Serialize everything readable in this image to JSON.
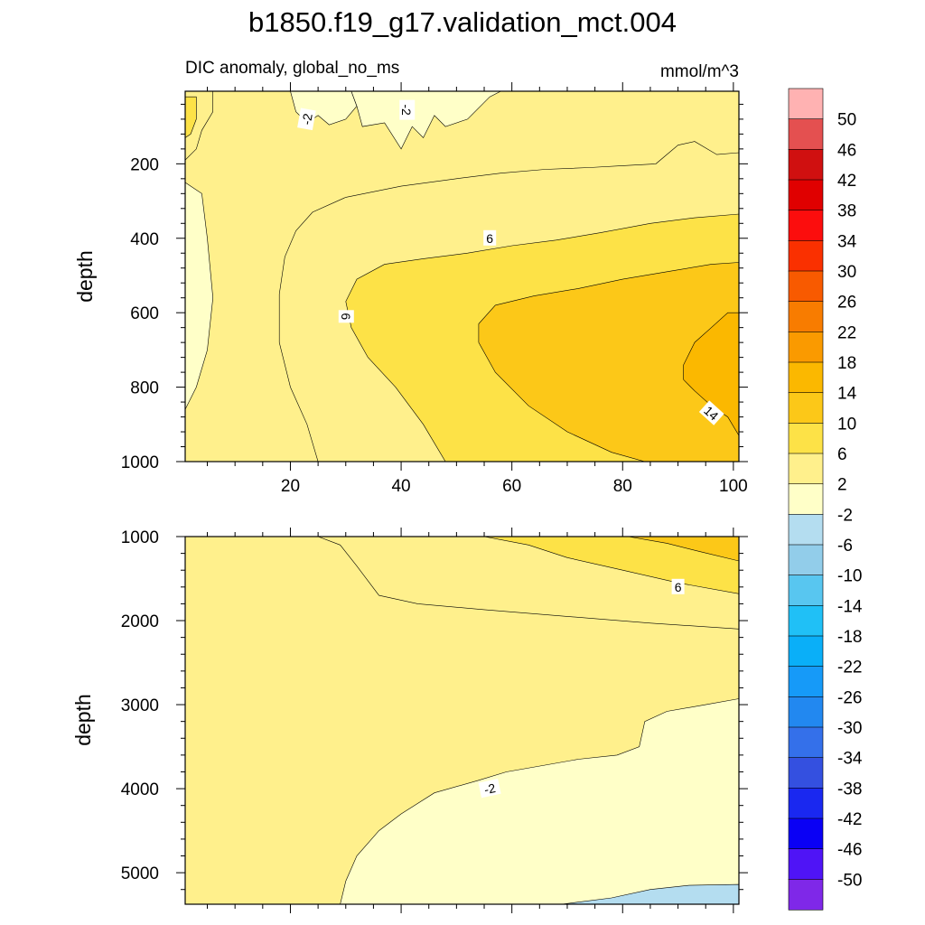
{
  "title": "b1850.f19_g17.validation_mct.004",
  "colors": {
    "palette": [
      "#7f28e8",
      "#4f14f6",
      "#0a00f5",
      "#1a28f0",
      "#3450e0",
      "#3470ea",
      "#2288f0",
      "#169af8",
      "#0aaff8",
      "#20c0f6",
      "#58c6f0",
      "#92cdea",
      "#b4ddf0",
      "#ffffc8",
      "#fff08c",
      "#fde247",
      "#fcc818",
      "#fbb800",
      "#fa9a00",
      "#f87c00",
      "#f85a00",
      "#fa3000",
      "#fc0d0d",
      "#e00000",
      "#d01010",
      "#e45050",
      "#ffb2b2"
    ],
    "line": "#000000",
    "frame": "#000000",
    "background": "#ffffff"
  },
  "chart_data": {
    "type": "contour",
    "variable": "DIC anomaly",
    "units": "mmol/m^3",
    "colorbar": {
      "levels": [
        -50,
        -46,
        -42,
        -38,
        -34,
        -30,
        -26,
        -22,
        -18,
        -14,
        -10,
        -6,
        -2,
        2,
        6,
        10,
        14,
        18,
        22,
        26,
        30,
        34,
        38,
        42,
        46,
        50
      ],
      "tick_labels": [
        "50",
        "46",
        "42",
        "38",
        "34",
        "30",
        "26",
        "22",
        "18",
        "14",
        "10",
        "6",
        "2",
        "-2",
        "-6",
        "-10",
        "-14",
        "-18",
        "-22",
        "-26",
        "-30",
        "-34",
        "-38",
        "-42",
        "-46",
        "-50"
      ]
    },
    "panels": [
      {
        "name": "upper",
        "left_label": "DIC anomaly, global_no_ms",
        "right_label": "mmol/m^3",
        "ylabel": "depth",
        "xlabel": "",
        "xlim": [
          1,
          101
        ],
        "ylim": [
          1000,
          5
        ],
        "xticks": [
          20,
          40,
          60,
          80,
          100
        ],
        "xtick_labels": [
          "20",
          "40",
          "60",
          "80",
          "100"
        ],
        "yticks": [
          200,
          400,
          600,
          800,
          1000
        ],
        "ytick_labels": [
          "200",
          "400",
          "600",
          "800",
          "1000"
        ],
        "contour_labels": [
          {
            "text": "-2",
            "x": 23,
            "y": 80,
            "rot": -80
          },
          {
            "text": "-2",
            "x": 41,
            "y": 55,
            "rot": 90
          },
          {
            "text": "6",
            "x": 56,
            "y": 400,
            "rot": 0
          },
          {
            "text": "6",
            "x": 30,
            "y": 610,
            "rot": 90
          },
          {
            "text": "14",
            "x": 96,
            "y": 870,
            "rot": 42
          }
        ],
        "regions": [
          {
            "level": 2,
            "points": [
              [
                1,
                5
              ],
              [
                101,
                5
              ],
              [
                101,
                1000
              ],
              [
                1,
                1000
              ]
            ]
          },
          {
            "level": -2,
            "points": [
              [
                12,
                5
              ],
              [
                31,
                5
              ],
              [
                32,
                45
              ],
              [
                30,
                80
              ],
              [
                27,
                95
              ],
              [
                25,
                70
              ],
              [
                23,
                90
              ],
              [
                21,
                60
              ],
              [
                20,
                5
              ]
            ]
          },
          {
            "level": -2,
            "points": [
              [
                31,
                5
              ],
              [
                58,
                5
              ],
              [
                56,
                20
              ],
              [
                52,
                80
              ],
              [
                48,
                100
              ],
              [
                46,
                70
              ],
              [
                44,
                130
              ],
              [
                42,
                100
              ],
              [
                40,
                160
              ],
              [
                37,
                90
              ],
              [
                33,
                100
              ],
              [
                32,
                45
              ]
            ]
          },
          {
            "level": -2,
            "points": [
              [
                1,
                250
              ],
              [
                4,
                280
              ],
              [
                5,
                400
              ],
              [
                6,
                560
              ],
              [
                5,
                700
              ],
              [
                3,
                800
              ],
              [
                1,
                860
              ]
            ]
          },
          {
            "level": 2,
            "points": [
              [
                1,
                5
              ],
              [
                6,
                5
              ],
              [
                6,
                60
              ],
              [
                4,
                110
              ],
              [
                3,
                160
              ],
              [
                1,
                190
              ]
            ]
          },
          {
            "level": 6,
            "points": [
              [
                1,
                20
              ],
              [
                3,
                20
              ],
              [
                3,
                80
              ],
              [
                2,
                120
              ],
              [
                1,
                130
              ]
            ]
          },
          {
            "level": 2,
            "points": [
              [
                101,
                170
              ],
              [
                97,
                175
              ],
              [
                93,
                140
              ],
              [
                90,
                150
              ],
              [
                86,
                200
              ],
              [
                80,
                205
              ],
              [
                74,
                210
              ],
              [
                66,
                215
              ],
              [
                58,
                225
              ],
              [
                50,
                240
              ],
              [
                40,
                260
              ],
              [
                30,
                290
              ],
              [
                24,
                330
              ],
              [
                21,
                380
              ],
              [
                19,
                450
              ],
              [
                18,
                550
              ],
              [
                18,
                680
              ],
              [
                20,
                800
              ],
              [
                23,
                900
              ],
              [
                25,
                1000
              ],
              [
                101,
                1000
              ]
            ]
          },
          {
            "level": 6,
            "points": [
              [
                101,
                335
              ],
              [
                93,
                345
              ],
              [
                85,
                360
              ],
              [
                76,
                385
              ],
              [
                68,
                405
              ],
              [
                60,
                420
              ],
              [
                52,
                440
              ],
              [
                44,
                455
              ],
              [
                37,
                470
              ],
              [
                32,
                510
              ],
              [
                30,
                570
              ],
              [
                31,
                640
              ],
              [
                34,
                720
              ],
              [
                39,
                800
              ],
              [
                44,
                900
              ],
              [
                48,
                1000
              ],
              [
                101,
                1000
              ]
            ]
          },
          {
            "level": 10,
            "points": [
              [
                101,
                465
              ],
              [
                96,
                470
              ],
              [
                88,
                490
              ],
              [
                80,
                510
              ],
              [
                72,
                535
              ],
              [
                64,
                555
              ],
              [
                57,
                580
              ],
              [
                54,
                630
              ],
              [
                54,
                680
              ],
              [
                57,
                760
              ],
              [
                63,
                850
              ],
              [
                70,
                920
              ],
              [
                78,
                975
              ],
              [
                84,
                1000
              ],
              [
                101,
                1000
              ]
            ]
          },
          {
            "level": 14,
            "points": [
              [
                101,
                600
              ],
              [
                99,
                600
              ],
              [
                96,
                640
              ],
              [
                93,
                680
              ],
              [
                91,
                740
              ],
              [
                91,
                780
              ],
              [
                93,
                810
              ],
              [
                96,
                850
              ],
              [
                99,
                880
              ],
              [
                101,
                930
              ]
            ]
          }
        ]
      },
      {
        "name": "lower",
        "left_label": "",
        "right_label": "",
        "ylabel": "depth",
        "xlabel": "",
        "xlim": [
          1,
          101
        ],
        "ylim": [
          5375,
          1000
        ],
        "xticks": [
          20,
          40,
          60,
          80,
          100
        ],
        "xtick_labels": [
          "",
          "",
          "",
          "",
          ""
        ],
        "yticks": [
          1000,
          2000,
          3000,
          4000,
          5000
        ],
        "ytick_labels": [
          "1000",
          "2000",
          "3000",
          "4000",
          "5000"
        ],
        "contour_labels": [
          {
            "text": "6",
            "x": 90,
            "y": 1600,
            "rot": 0
          },
          {
            "text": "-2",
            "x": 56,
            "y": 4000,
            "rot": -12
          }
        ],
        "regions": [
          {
            "level": 2,
            "points": [
              [
                1,
                1000
              ],
              [
                101,
                1000
              ],
              [
                101,
                5375
              ],
              [
                1,
                5375
              ]
            ]
          },
          {
            "level": 2,
            "points": [
              [
                25,
                1000
              ],
              [
                29,
                1100
              ],
              [
                32,
                1350
              ],
              [
                36,
                1700
              ],
              [
                43,
                1800
              ],
              [
                55,
                1870
              ],
              [
                70,
                1950
              ],
              [
                85,
                2030
              ],
              [
                101,
                2100
              ],
              [
                101,
                1000
              ]
            ]
          },
          {
            "level": 6,
            "points": [
              [
                55,
                1000
              ],
              [
                63,
                1100
              ],
              [
                70,
                1250
              ],
              [
                80,
                1400
              ],
              [
                90,
                1550
              ],
              [
                101,
                1680
              ],
              [
                101,
                1000
              ]
            ]
          },
          {
            "level": 10,
            "points": [
              [
                81,
                1000
              ],
              [
                88,
                1080
              ],
              [
                94,
                1180
              ],
              [
                101,
                1290
              ],
              [
                101,
                1000
              ]
            ]
          },
          {
            "level": -2,
            "points": [
              [
                101,
                2930
              ],
              [
                95,
                3000
              ],
              [
                88,
                3080
              ],
              [
                84,
                3200
              ],
              [
                83,
                3500
              ],
              [
                79,
                3600
              ],
              [
                72,
                3650
              ],
              [
                66,
                3720
              ],
              [
                59,
                3800
              ],
              [
                54,
                3900
              ],
              [
                46,
                4050
              ],
              [
                40,
                4300
              ],
              [
                36,
                4500
              ],
              [
                32,
                4800
              ],
              [
                30,
                5100
              ],
              [
                29,
                5375
              ],
              [
                101,
                5375
              ]
            ]
          },
          {
            "level": -6,
            "points": [
              [
                101,
                5140
              ],
              [
                92,
                5150
              ],
              [
                85,
                5200
              ],
              [
                78,
                5300
              ],
              [
                69,
                5375
              ],
              [
                101,
                5375
              ]
            ]
          }
        ]
      }
    ]
  }
}
